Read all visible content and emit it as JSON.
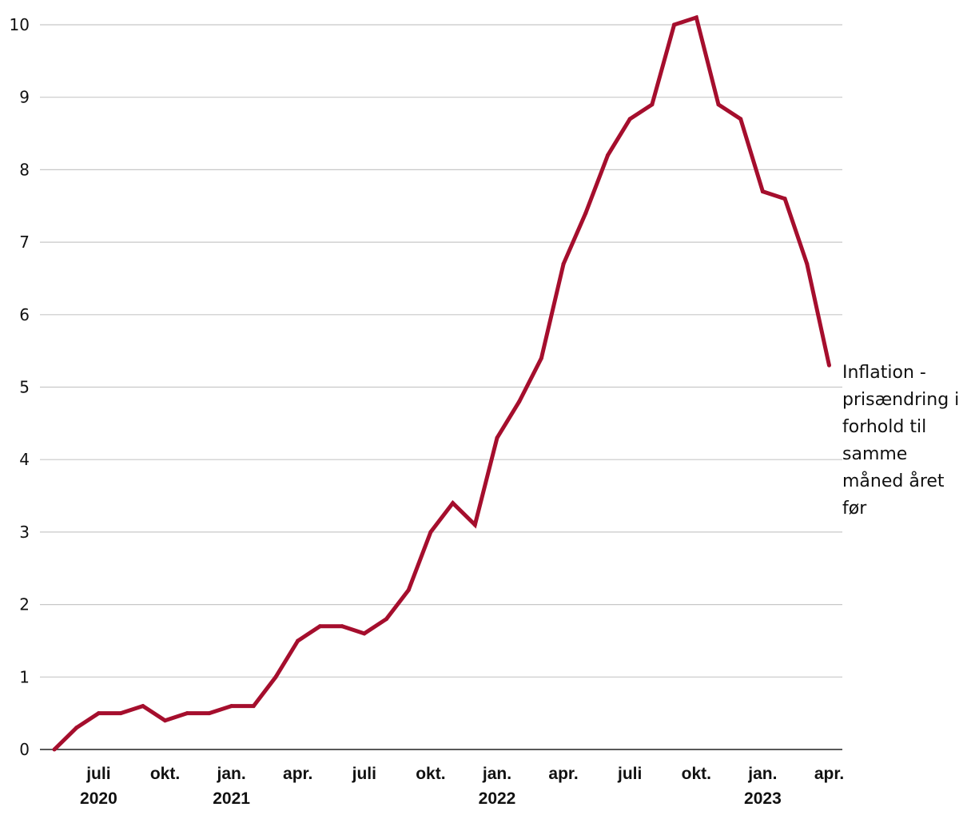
{
  "chart_data": {
    "type": "line",
    "title": "",
    "xlabel": "",
    "ylabel": "",
    "ylim": [
      0,
      10
    ],
    "yticks": [
      0,
      1,
      2,
      3,
      4,
      5,
      6,
      7,
      8,
      9,
      10
    ],
    "grid": true,
    "x": [
      "2020-05",
      "2020-06",
      "2020-07",
      "2020-08",
      "2020-09",
      "2020-10",
      "2020-11",
      "2020-12",
      "2021-01",
      "2021-02",
      "2021-03",
      "2021-04",
      "2021-05",
      "2021-06",
      "2021-07",
      "2021-08",
      "2021-09",
      "2021-10",
      "2021-11",
      "2021-12",
      "2022-01",
      "2022-02",
      "2022-03",
      "2022-04",
      "2022-05",
      "2022-06",
      "2022-07",
      "2022-08",
      "2022-09",
      "2022-10",
      "2022-11",
      "2022-12",
      "2023-01",
      "2023-02",
      "2023-03",
      "2023-04"
    ],
    "x_tick_labels": [
      {
        "index": 2,
        "lines": [
          "juli",
          "2020"
        ]
      },
      {
        "index": 5,
        "lines": [
          "okt."
        ]
      },
      {
        "index": 8,
        "lines": [
          "jan.",
          "2021"
        ]
      },
      {
        "index": 11,
        "lines": [
          "apr."
        ]
      },
      {
        "index": 14,
        "lines": [
          "juli"
        ]
      },
      {
        "index": 17,
        "lines": [
          "okt."
        ]
      },
      {
        "index": 20,
        "lines": [
          "jan.",
          "2022"
        ]
      },
      {
        "index": 23,
        "lines": [
          "apr."
        ]
      },
      {
        "index": 26,
        "lines": [
          "juli"
        ]
      },
      {
        "index": 29,
        "lines": [
          "okt."
        ]
      },
      {
        "index": 32,
        "lines": [
          "jan.",
          "2023"
        ]
      },
      {
        "index": 35,
        "lines": [
          "apr."
        ]
      }
    ],
    "series": [
      {
        "name": "Inflation - prisændring i forhold til samme måned året før",
        "color": "#a50e2d",
        "values": [
          0.0,
          0.3,
          0.5,
          0.5,
          0.6,
          0.4,
          0.5,
          0.5,
          0.6,
          0.6,
          1.0,
          1.5,
          1.7,
          1.7,
          1.6,
          1.8,
          2.2,
          3.0,
          3.4,
          3.1,
          4.3,
          4.8,
          5.4,
          6.7,
          7.4,
          8.2,
          8.7,
          8.9,
          10.0,
          10.1,
          8.9,
          8.7,
          7.7,
          7.6,
          6.7,
          5.3
        ]
      }
    ],
    "colors": {
      "grid": "#c8c8c8",
      "axis": "#222222",
      "text": "#111111"
    }
  }
}
